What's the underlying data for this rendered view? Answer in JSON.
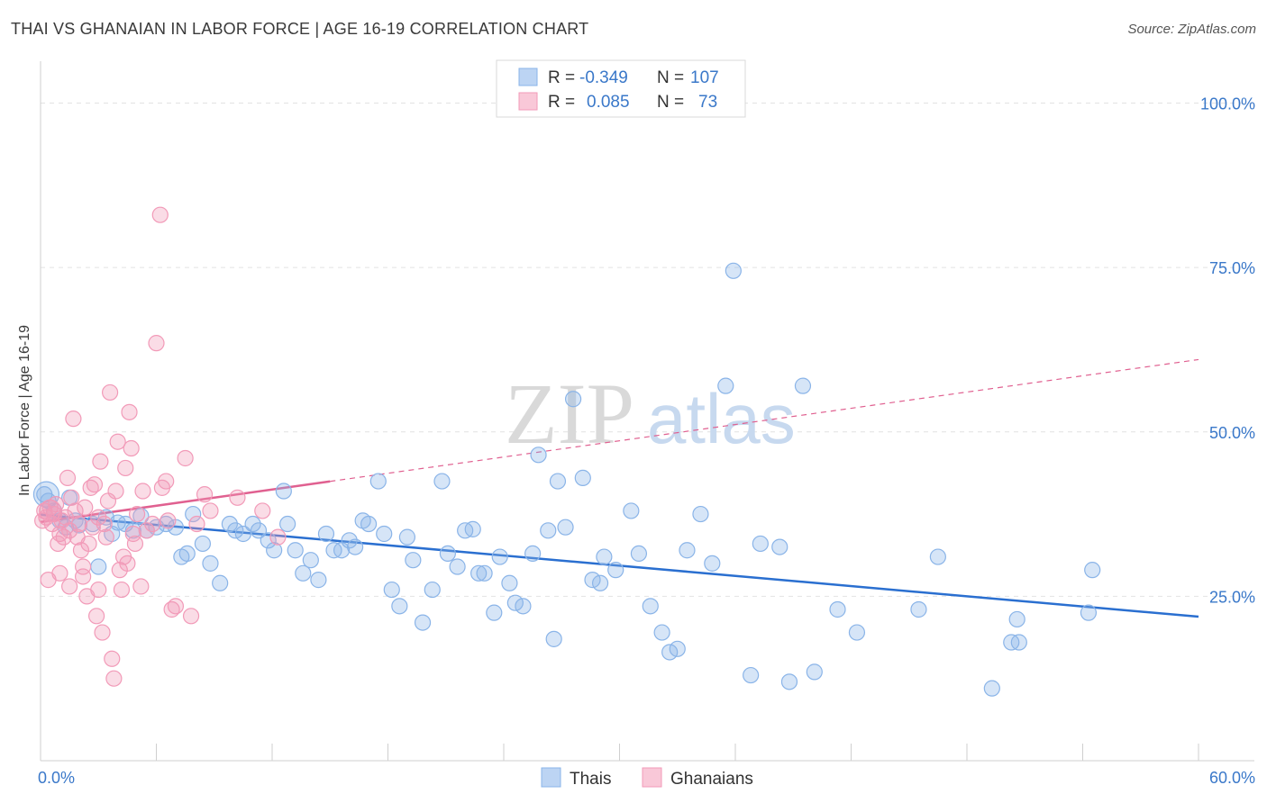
{
  "title": "THAI VS GHANAIAN IN LABOR FORCE | AGE 16-19 CORRELATION CHART",
  "source": "Source: ZipAtlas.com",
  "watermark": {
    "zip": "ZIP",
    "atlas": "atlas"
  },
  "colors": {
    "thais": "#8ab4e8",
    "thais_line": "#2a6fd0",
    "ghanaians": "#f29ab8",
    "ghanaians_line": "#e06090",
    "axis_text": "#3a78c9"
  },
  "legend_top": {
    "rows": [
      {
        "r_label": "R =",
        "r_value": "-0.349",
        "n_label": "N =",
        "n_value": "107"
      },
      {
        "r_label": "R =",
        "r_value": "0.085",
        "n_label": "N =",
        "n_value": "73"
      }
    ]
  },
  "chart_data": {
    "type": "scatter",
    "title": "THAI VS GHANAIAN IN LABOR FORCE | AGE 16-19 CORRELATION CHART",
    "xlabel": "",
    "ylabel": "In Labor Force | Age 16-19",
    "xlim": [
      0,
      60
    ],
    "ylim": [
      0,
      105
    ],
    "x_tick_labels": [
      "0.0%",
      "60.0%"
    ],
    "y_ticks": [
      25,
      50,
      75,
      100
    ],
    "y_tick_labels": [
      "25.0%",
      "50.0%",
      "75.0%",
      "100.0%"
    ],
    "grid": true,
    "legend_position": "bottom-center",
    "series": [
      {
        "name": "Thais",
        "color": "#8ab4e8",
        "trend": {
          "x": [
            0,
            60
          ],
          "y": [
            37.4,
            21.9
          ],
          "style": "solid"
        },
        "points": [
          [
            0.2,
            40.5
          ],
          [
            0.4,
            39.5
          ],
          [
            0.7,
            38.0
          ],
          [
            1.0,
            36.5
          ],
          [
            1.3,
            35.5
          ],
          [
            1.5,
            40.0
          ],
          [
            1.8,
            36.5
          ],
          [
            2.0,
            35.8
          ],
          [
            2.7,
            36.0
          ],
          [
            3.0,
            29.5
          ],
          [
            3.4,
            37.0
          ],
          [
            3.7,
            34.5
          ],
          [
            4.0,
            36.2
          ],
          [
            4.4,
            36.0
          ],
          [
            4.8,
            35.0
          ],
          [
            5.2,
            37.2
          ],
          [
            5.5,
            35.0
          ],
          [
            6.0,
            35.5
          ],
          [
            6.5,
            36.0
          ],
          [
            7.0,
            35.5
          ],
          [
            7.3,
            31.0
          ],
          [
            7.6,
            31.5
          ],
          [
            7.9,
            37.5
          ],
          [
            8.4,
            33.0
          ],
          [
            8.8,
            30.0
          ],
          [
            9.3,
            27.0
          ],
          [
            9.8,
            36.0
          ],
          [
            10.1,
            35.0
          ],
          [
            10.5,
            34.5
          ],
          [
            11.0,
            36.0
          ],
          [
            11.3,
            35.0
          ],
          [
            11.8,
            33.5
          ],
          [
            12.1,
            32.0
          ],
          [
            12.6,
            41.0
          ],
          [
            12.8,
            36.0
          ],
          [
            13.2,
            32.0
          ],
          [
            13.6,
            28.5
          ],
          [
            14.0,
            30.5
          ],
          [
            14.4,
            27.5
          ],
          [
            14.8,
            34.5
          ],
          [
            15.2,
            32.0
          ],
          [
            15.6,
            32.0
          ],
          [
            16.0,
            33.5
          ],
          [
            16.3,
            32.5
          ],
          [
            16.7,
            36.5
          ],
          [
            17.0,
            36.0
          ],
          [
            17.5,
            42.5
          ],
          [
            17.8,
            34.5
          ],
          [
            18.2,
            26.0
          ],
          [
            18.6,
            23.5
          ],
          [
            19.0,
            34.0
          ],
          [
            19.3,
            30.5
          ],
          [
            19.8,
            21.0
          ],
          [
            20.3,
            26.0
          ],
          [
            20.8,
            42.5
          ],
          [
            21.1,
            31.5
          ],
          [
            21.6,
            29.5
          ],
          [
            22.0,
            35.0
          ],
          [
            22.4,
            35.2
          ],
          [
            22.7,
            28.5
          ],
          [
            23.0,
            28.5
          ],
          [
            23.5,
            22.5
          ],
          [
            23.8,
            31.0
          ],
          [
            24.3,
            27.0
          ],
          [
            24.6,
            24.0
          ],
          [
            25.0,
            23.5
          ],
          [
            25.5,
            31.5
          ],
          [
            25.8,
            46.5
          ],
          [
            26.3,
            35.0
          ],
          [
            26.6,
            18.5
          ],
          [
            26.8,
            42.5
          ],
          [
            27.2,
            35.5
          ],
          [
            27.6,
            55.0
          ],
          [
            28.1,
            43.0
          ],
          [
            28.6,
            27.5
          ],
          [
            29.0,
            27.0
          ],
          [
            29.2,
            31.0
          ],
          [
            29.8,
            29.0
          ],
          [
            30.6,
            38.0
          ],
          [
            31.0,
            31.5
          ],
          [
            31.6,
            23.5
          ],
          [
            32.2,
            19.5
          ],
          [
            32.6,
            16.5
          ],
          [
            33.0,
            17.0
          ],
          [
            33.5,
            32.0
          ],
          [
            34.2,
            37.5
          ],
          [
            34.8,
            30.0
          ],
          [
            35.5,
            57.0
          ],
          [
            35.9,
            74.5
          ],
          [
            36.8,
            13.0
          ],
          [
            37.3,
            33.0
          ],
          [
            38.3,
            32.5
          ],
          [
            38.8,
            12.0
          ],
          [
            39.5,
            57.0
          ],
          [
            40.1,
            13.5
          ],
          [
            41.3,
            23.0
          ],
          [
            42.3,
            19.5
          ],
          [
            45.5,
            23.0
          ],
          [
            46.5,
            31.0
          ],
          [
            49.3,
            11.0
          ],
          [
            50.3,
            18.0
          ],
          [
            50.6,
            21.5
          ],
          [
            50.7,
            18.0
          ],
          [
            54.3,
            22.5
          ],
          [
            54.5,
            29.0
          ]
        ]
      },
      {
        "name": "Ghanaians",
        "color": "#f29ab8",
        "trend": {
          "x": [
            0,
            60
          ],
          "y": [
            36.3,
            61.0
          ],
          "solid_until": 15,
          "style": "solid-then-dashed"
        },
        "points": [
          [
            0.1,
            36.5
          ],
          [
            0.2,
            38.0
          ],
          [
            0.3,
            37.0
          ],
          [
            0.4,
            27.5
          ],
          [
            0.5,
            38.5
          ],
          [
            0.6,
            36.0
          ],
          [
            0.7,
            37.5
          ],
          [
            0.8,
            39.0
          ],
          [
            0.9,
            33.0
          ],
          [
            1.0,
            28.5
          ],
          [
            1.0,
            34.5
          ],
          [
            1.1,
            36.5
          ],
          [
            1.2,
            34.0
          ],
          [
            1.3,
            37.0
          ],
          [
            1.4,
            43.0
          ],
          [
            1.5,
            35.0
          ],
          [
            1.5,
            26.5
          ],
          [
            1.6,
            40.0
          ],
          [
            1.7,
            52.0
          ],
          [
            1.8,
            38.0
          ],
          [
            1.9,
            34.0
          ],
          [
            2.0,
            36.0
          ],
          [
            2.1,
            32.0
          ],
          [
            2.2,
            28.0
          ],
          [
            2.2,
            29.5
          ],
          [
            2.3,
            38.5
          ],
          [
            2.4,
            25.0
          ],
          [
            2.5,
            33.0
          ],
          [
            2.6,
            41.5
          ],
          [
            2.7,
            35.5
          ],
          [
            2.8,
            42.0
          ],
          [
            2.9,
            22.0
          ],
          [
            3.0,
            37.0
          ],
          [
            3.0,
            26.0
          ],
          [
            3.1,
            45.5
          ],
          [
            3.2,
            19.5
          ],
          [
            3.3,
            36.0
          ],
          [
            3.4,
            34.0
          ],
          [
            3.5,
            39.5
          ],
          [
            3.6,
            56.0
          ],
          [
            3.7,
            15.5
          ],
          [
            3.8,
            12.5
          ],
          [
            3.9,
            41.0
          ],
          [
            4.0,
            48.5
          ],
          [
            4.1,
            29.0
          ],
          [
            4.2,
            26.0
          ],
          [
            4.3,
            31.0
          ],
          [
            4.4,
            44.5
          ],
          [
            4.5,
            30.0
          ],
          [
            4.6,
            53.0
          ],
          [
            4.7,
            47.5
          ],
          [
            4.8,
            34.5
          ],
          [
            4.9,
            33.0
          ],
          [
            5.0,
            37.5
          ],
          [
            5.2,
            26.5
          ],
          [
            5.3,
            41.0
          ],
          [
            5.5,
            35.0
          ],
          [
            5.8,
            36.0
          ],
          [
            6.0,
            63.5
          ],
          [
            6.2,
            83.0
          ],
          [
            6.3,
            41.5
          ],
          [
            6.5,
            42.5
          ],
          [
            6.6,
            36.5
          ],
          [
            6.8,
            23.0
          ],
          [
            7.0,
            23.5
          ],
          [
            7.5,
            46.0
          ],
          [
            7.8,
            22.0
          ],
          [
            8.1,
            36.0
          ],
          [
            8.5,
            40.5
          ],
          [
            8.8,
            38.0
          ],
          [
            10.2,
            40.0
          ],
          [
            11.5,
            38.0
          ],
          [
            12.3,
            34.0
          ]
        ]
      }
    ]
  },
  "legend_bottom": {
    "items": [
      "Thais",
      "Ghanaians"
    ]
  }
}
